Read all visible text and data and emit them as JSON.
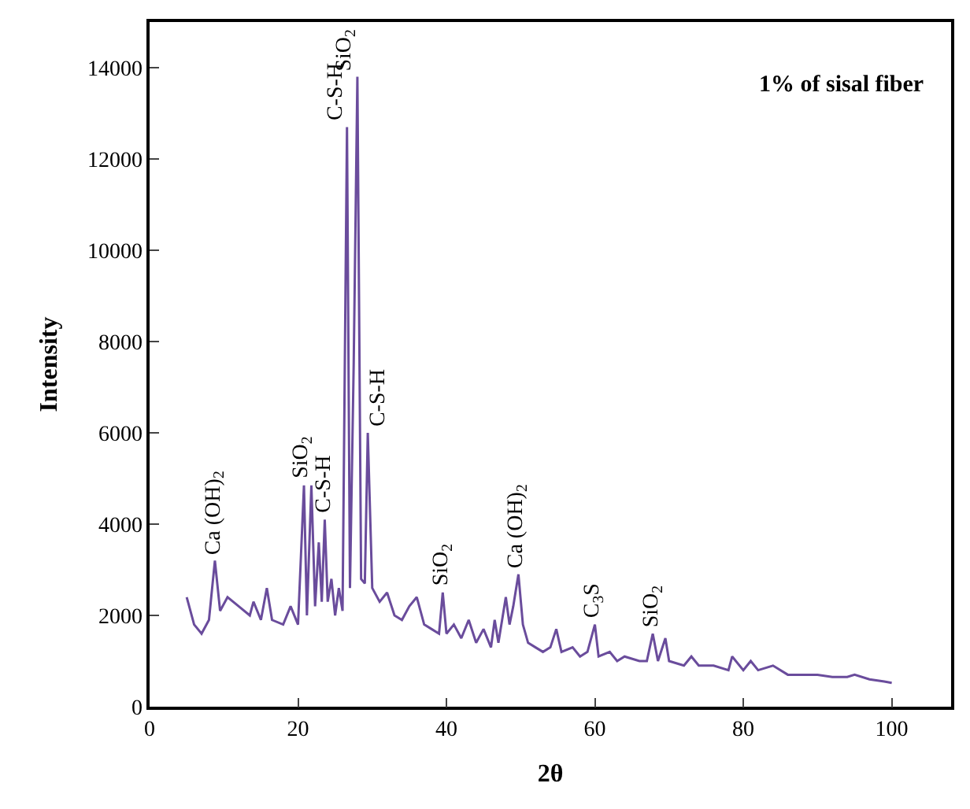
{
  "chart_data": {
    "type": "line",
    "xlabel": "2θ",
    "ylabel": "Intensity",
    "xlim": [
      0,
      108
    ],
    "xticks": [
      0,
      20,
      40,
      60,
      80,
      100
    ],
    "ylim": [
      0,
      15000
    ],
    "yticks": [
      0,
      2000,
      4000,
      6000,
      8000,
      10000,
      12000,
      14000
    ],
    "marker": "none",
    "line_style": "solid",
    "series": [
      {
        "color": "#6a4c9c",
        "x": [
          5,
          6,
          7,
          8,
          8.8,
          9.5,
          10.5,
          12,
          13.5,
          14,
          15,
          15.8,
          16.5,
          18,
          19,
          20,
          20.8,
          21.2,
          21.8,
          22.3,
          22.8,
          23.2,
          23.6,
          24,
          24.5,
          25,
          25.5,
          26,
          26.6,
          27,
          27.5,
          28,
          28.5,
          29,
          29.4,
          30,
          31,
          32,
          33,
          34,
          35,
          36,
          37,
          38,
          39,
          39.5,
          40,
          41,
          42,
          43,
          44,
          45,
          46,
          46.5,
          47,
          48,
          48.5,
          49,
          49.7,
          50.3,
          51,
          52,
          53,
          54,
          54.8,
          55.5,
          57,
          58,
          59,
          60,
          60.5,
          62,
          63,
          64,
          66,
          67,
          67.8,
          68.5,
          69.5,
          70,
          72,
          73,
          74,
          76,
          78,
          78.5,
          80,
          81,
          82,
          84,
          86,
          88,
          90,
          92,
          94,
          95,
          97,
          99,
          100
        ],
        "values": [
          2400,
          1800,
          1600,
          1900,
          3200,
          2100,
          2400,
          2200,
          2000,
          2300,
          1900,
          2600,
          1900,
          1800,
          2200,
          1800,
          4850,
          2000,
          4850,
          2200,
          3600,
          2300,
          4100,
          2300,
          2800,
          2000,
          2600,
          2100,
          12700,
          2600,
          7500,
          13800,
          2800,
          2700,
          6000,
          2600,
          2300,
          2500,
          2000,
          1900,
          2200,
          2400,
          1800,
          1700,
          1600,
          2500,
          1600,
          1800,
          1500,
          1900,
          1400,
          1700,
          1300,
          1900,
          1400,
          2400,
          1800,
          2200,
          2900,
          1800,
          1400,
          1300,
          1200,
          1300,
          1700,
          1200,
          1300,
          1100,
          1200,
          1800,
          1100,
          1200,
          1000,
          1100,
          1000,
          1000,
          1600,
          1000,
          1500,
          1000,
          900,
          1100,
          900,
          900,
          800,
          1100,
          800,
          1000,
          800,
          900,
          700,
          700,
          700,
          650,
          650,
          700,
          600,
          550,
          520
        ]
      }
    ],
    "annotations": [
      "1% of sisal fiber",
      {
        "text": "Ca (OH)$_{2}$",
        "x": 8.8,
        "y": 3200
      },
      {
        "text": "SiO$_{2}$",
        "x": 20.8,
        "y": 4850
      },
      {
        "text": "C-S-H",
        "x": 23.6,
        "y": 4100
      },
      {
        "text": "C-S-H",
        "x": 26.6,
        "y": 12700
      },
      {
        "text": "SiO$_{2}$",
        "x": 28,
        "y": 13800
      },
      {
        "text": "C-S-H",
        "x": 29.4,
        "y": 6000
      },
      {
        "text": "SiO$_{2}$",
        "x": 39.5,
        "y": 2500
      },
      {
        "text": "Ca (OH)$_{2}$",
        "x": 49.7,
        "y": 2900
      },
      {
        "text": "C$_{3}$S",
        "x": 60,
        "y": 1800
      },
      {
        "text": "SiO$_{2}$",
        "x": 67.8,
        "y": 1600
      }
    ]
  }
}
